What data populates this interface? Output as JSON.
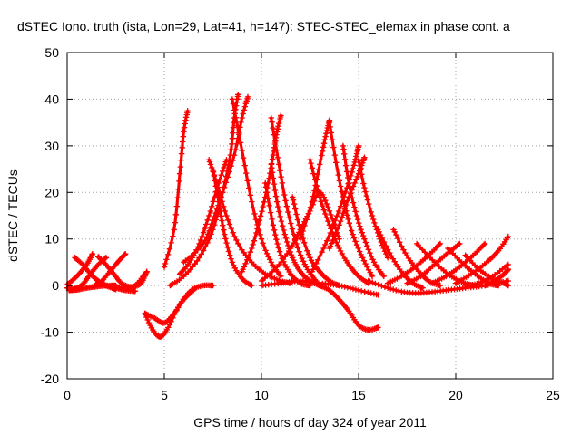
{
  "colors": {
    "series": "#ff0000",
    "axis": "#000000",
    "grid": "#a0a0a0",
    "background": "#ffffff"
  },
  "chart_data": {
    "type": "line",
    "title": "dSTEC Iono. truth (ista, Lon=29, Lat=41, h=147): STEC-STEC_elemax in phase cont. a",
    "xlabel": "GPS time / hours of day 324 of year 2011",
    "ylabel": "dSTEC  / TECUs",
    "xlim": [
      0,
      25
    ],
    "ylim": [
      -20,
      50
    ],
    "xticks": [
      0,
      5,
      10,
      15,
      20,
      25
    ],
    "yticks": [
      -20,
      -10,
      0,
      10,
      20,
      30,
      40,
      50
    ],
    "grid": true,
    "legend": "none",
    "marker": "plus",
    "series": [
      {
        "x": [
          0.0,
          0.4,
          0.8,
          1.2,
          1.6,
          2.0
        ],
        "y": [
          -0.5,
          -0.7,
          0.3,
          2.5,
          4.5,
          6.0
        ]
      },
      {
        "x": [
          0.4,
          0.8,
          1.2,
          1.6,
          2.0,
          2.5
        ],
        "y": [
          6.0,
          4.5,
          2.5,
          1.0,
          0.0,
          -0.8
        ]
      },
      {
        "x": [
          0.0,
          0.5,
          1.0,
          1.3
        ],
        "y": [
          0.2,
          2.0,
          4.5,
          6.8
        ]
      },
      {
        "x": [
          1.5,
          2.0,
          2.5,
          3.0,
          3.5
        ],
        "y": [
          0.5,
          0.0,
          -0.5,
          -1.0,
          -1.2
        ]
      },
      {
        "x": [
          1.7,
          2.2,
          2.7,
          3.0
        ],
        "y": [
          0.5,
          3.0,
          5.5,
          6.8
        ]
      },
      {
        "x": [
          1.6,
          2.0,
          2.4,
          2.8,
          3.3,
          3.8,
          4.1
        ],
        "y": [
          6.2,
          4.5,
          2.5,
          0.5,
          -0.3,
          0.5,
          3.0
        ]
      },
      {
        "x": [
          0.1,
          0.5,
          1.0,
          1.5,
          2.0,
          2.5
        ],
        "y": [
          -1.0,
          -0.9,
          -0.5,
          -0.2,
          0.0,
          0.0
        ]
      },
      {
        "x": [
          2.3,
          3.0,
          3.5,
          4.0
        ],
        "y": [
          0.0,
          -0.5,
          0.0,
          2.5
        ]
      },
      {
        "x": [
          4.0,
          4.5,
          5.0,
          5.5,
          6.0,
          6.5
        ],
        "y": [
          -6.0,
          -7.0,
          -8.0,
          -6.0,
          -3.0,
          -1.0
        ]
      },
      {
        "x": [
          4.0,
          4.4,
          4.8,
          5.2,
          5.8,
          6.4,
          7.0,
          7.5
        ],
        "y": [
          -6.0,
          -9.5,
          -11.0,
          -9.0,
          -4.0,
          -1.0,
          0.0,
          0.0
        ]
      },
      {
        "x": [
          5.0,
          5.5,
          5.8,
          6.0,
          6.2
        ],
        "y": [
          4.0,
          12.0,
          24.0,
          33.0,
          37.5
        ]
      },
      {
        "x": [
          5.3,
          6.0,
          6.8,
          7.5,
          8.0,
          8.4,
          8.6,
          8.8
        ],
        "y": [
          0.0,
          2.0,
          6.0,
          12.0,
          20.0,
          28.0,
          36.0,
          41.0
        ]
      },
      {
        "x": [
          5.8,
          6.3,
          6.8,
          7.3,
          7.8,
          8.2
        ],
        "y": [
          2.5,
          5.0,
          9.0,
          15.0,
          22.0,
          27.0
        ]
      },
      {
        "x": [
          7.3,
          7.7,
          8.2,
          8.8,
          9.5,
          10.2,
          11.0,
          11.5
        ],
        "y": [
          27.0,
          22.0,
          15.0,
          9.0,
          5.0,
          2.5,
          1.0,
          0.5
        ]
      },
      {
        "x": [
          7.5,
          7.8,
          8.1,
          8.5,
          9.0,
          9.5
        ],
        "y": [
          25.0,
          18.0,
          11.0,
          5.0,
          1.5,
          0.0
        ]
      },
      {
        "x": [
          6.0,
          7.0,
          7.5,
          8.0,
          8.6,
          9.0,
          9.3
        ],
        "y": [
          5.0,
          9.0,
          14.0,
          20.0,
          28.0,
          36.0,
          40.5
        ]
      },
      {
        "x": [
          8.5,
          9.0,
          9.5,
          10.0,
          10.5,
          11.0
        ],
        "y": [
          40.0,
          29.0,
          18.0,
          10.0,
          5.0,
          2.0
        ]
      },
      {
        "x": [
          9.0,
          9.5,
          9.9,
          10.3,
          10.6,
          10.8,
          11.0
        ],
        "y": [
          3.0,
          8.0,
          14.0,
          21.0,
          28.0,
          33.0,
          36.5
        ]
      },
      {
        "x": [
          10.5,
          10.9,
          11.3,
          11.8,
          12.3,
          12.8
        ],
        "y": [
          36.0,
          26.0,
          17.0,
          9.0,
          4.0,
          1.0
        ]
      },
      {
        "x": [
          10.2,
          10.6,
          11.0,
          11.5,
          12.0,
          12.5
        ],
        "y": [
          22.0,
          13.0,
          6.5,
          2.5,
          0.5,
          0.0
        ]
      },
      {
        "x": [
          10.5,
          10.8,
          11.2,
          11.6,
          12.0,
          12.5,
          13.0
        ],
        "y": [
          26.0,
          18.0,
          11.0,
          6.0,
          3.0,
          1.0,
          0.0
        ]
      },
      {
        "x": [
          11.6,
          12.0,
          12.5,
          13.0,
          13.5,
          14.0
        ],
        "y": [
          19.0,
          12.0,
          6.0,
          3.0,
          1.0,
          0.0
        ]
      },
      {
        "x": [
          10.0,
          10.8,
          11.5,
          12.0,
          12.5,
          13.0,
          13.5,
          14.0
        ],
        "y": [
          1.0,
          4.0,
          8.0,
          12.0,
          16.0,
          20.0,
          16.0,
          10.0
        ]
      },
      {
        "x": [
          12.5,
          13.0,
          13.5,
          14.0,
          14.5,
          15.0,
          15.5
        ],
        "y": [
          27.0,
          19.0,
          13.0,
          8.0,
          4.5,
          2.0,
          0.5
        ]
      },
      {
        "x": [
          12.0,
          12.6,
          13.0,
          13.3,
          13.5
        ],
        "y": [
          10.0,
          18.0,
          26.0,
          32.0,
          35.5
        ]
      },
      {
        "x": [
          13.5,
          13.9,
          14.3,
          14.7,
          15.2,
          15.7
        ],
        "y": [
          35.0,
          25.0,
          17.0,
          11.0,
          6.0,
          2.0
        ]
      },
      {
        "x": [
          12.6,
          13.2,
          13.8,
          14.4,
          14.8,
          15.0
        ],
        "y": [
          3.0,
          8.0,
          14.0,
          21.0,
          26.5,
          30.0
        ]
      },
      {
        "x": [
          14.2,
          14.5,
          14.9,
          15.3,
          15.8,
          16.3
        ],
        "y": [
          30.0,
          22.0,
          15.0,
          10.0,
          5.0,
          2.0
        ]
      },
      {
        "x": [
          13.5,
          14.0,
          14.5,
          15.0,
          15.3
        ],
        "y": [
          8.0,
          13.0,
          19.0,
          24.0,
          27.5
        ]
      },
      {
        "x": [
          15.0,
          15.3,
          15.7,
          16.1,
          16.5
        ],
        "y": [
          27.0,
          21.0,
          15.0,
          10.0,
          6.0
        ]
      },
      {
        "x": [
          13.0,
          13.5,
          14.0,
          14.5,
          15.0,
          15.5,
          16.0
        ],
        "y": [
          0.0,
          -1.0,
          -3.0,
          -5.5,
          -8.5,
          -9.5,
          -9.0
        ]
      },
      {
        "x": [
          10.0,
          11.0,
          12.0,
          13.0,
          14.0,
          15.0,
          16.0
        ],
        "y": [
          0.0,
          0.5,
          1.0,
          0.5,
          0.0,
          -1.0,
          -2.0
        ]
      },
      {
        "x": [
          16.0,
          16.6,
          17.2,
          17.8,
          18.3
        ],
        "y": [
          12.0,
          7.0,
          3.0,
          0.5,
          -0.5
        ]
      },
      {
        "x": [
          16.8,
          17.4,
          18.0,
          18.6,
          19.2
        ],
        "y": [
          12.0,
          7.0,
          3.5,
          1.0,
          0.0
        ]
      },
      {
        "x": [
          18.0,
          18.8,
          19.6,
          20.3,
          20.9
        ],
        "y": [
          9.0,
          5.5,
          2.5,
          0.8,
          0.0
        ]
      },
      {
        "x": [
          19.6,
          20.3,
          21.0,
          21.7,
          22.2
        ],
        "y": [
          8.0,
          5.0,
          2.5,
          0.5,
          0.0
        ]
      },
      {
        "x": [
          20.5,
          21.2,
          21.9,
          22.5,
          22.7
        ],
        "y": [
          6.5,
          3.5,
          1.5,
          0.5,
          0.0
        ]
      },
      {
        "x": [
          16.5,
          17.2,
          17.9,
          18.6,
          19.2
        ],
        "y": [
          0.5,
          2.0,
          4.0,
          6.5,
          9.0
        ]
      },
      {
        "x": [
          17.5,
          18.2,
          18.9,
          19.6,
          20.2
        ],
        "y": [
          0.5,
          2.0,
          4.5,
          7.0,
          9.0
        ]
      },
      {
        "x": [
          18.8,
          19.5,
          20.2,
          20.9,
          21.5
        ],
        "y": [
          0.5,
          2.0,
          4.0,
          6.5,
          9.0
        ]
      },
      {
        "x": [
          20.0,
          20.8,
          21.6,
          22.2,
          22.7
        ],
        "y": [
          0.5,
          2.5,
          5.0,
          7.5,
          10.5
        ]
      },
      {
        "x": [
          15.5,
          16.5,
          17.5,
          18.5,
          19.5,
          20.5,
          21.5,
          22.7
        ],
        "y": [
          1.0,
          -0.5,
          -1.5,
          -1.5,
          -1.0,
          -0.5,
          0.0,
          1.0
        ]
      },
      {
        "x": [
          20.5,
          21.2,
          21.9,
          22.7
        ],
        "y": [
          0.0,
          0.5,
          2.0,
          4.5
        ]
      },
      {
        "x": [
          21.5,
          22.0,
          22.5,
          22.7
        ],
        "y": [
          0.0,
          1.0,
          2.5,
          3.5
        ]
      }
    ]
  }
}
